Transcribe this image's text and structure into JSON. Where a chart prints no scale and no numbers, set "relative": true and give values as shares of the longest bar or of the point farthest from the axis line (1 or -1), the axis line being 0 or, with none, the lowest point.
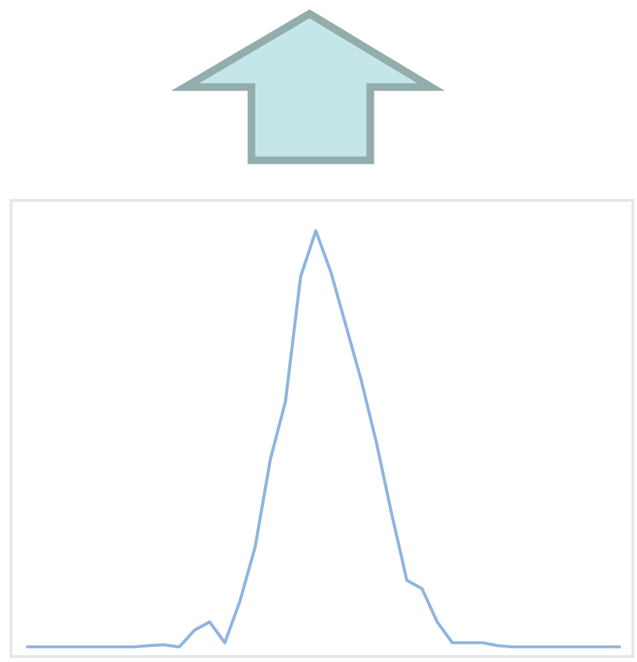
{
  "chart_data": {
    "type": "line",
    "relative": true,
    "categories": [
      null,
      null,
      null,
      null,
      null,
      null,
      null,
      null,
      null,
      null,
      null,
      null,
      null,
      null,
      null,
      null,
      null,
      null,
      null,
      null,
      null,
      null,
      null,
      null,
      null,
      null,
      null,
      null,
      null,
      null,
      null,
      null,
      null,
      null,
      null,
      null,
      null,
      null,
      null,
      null
    ],
    "series": [
      {
        "color": "#8fb4e0",
        "values": [
          0,
          0,
          0,
          0,
          0,
          0,
          0,
          0,
          0.003,
          0.005,
          0,
          0.04,
          0.06,
          0.01,
          0.11,
          0.24,
          0.45,
          0.59,
          0.89,
          1,
          0.9,
          0.77,
          0.64,
          0.49,
          0.32,
          0.16,
          0.14,
          0.06,
          0.01,
          0.01,
          0.01,
          0.003,
          0,
          0,
          0,
          0,
          0,
          0,
          0,
          0
        ]
      }
    ],
    "grid": false,
    "legend": false
  }
}
